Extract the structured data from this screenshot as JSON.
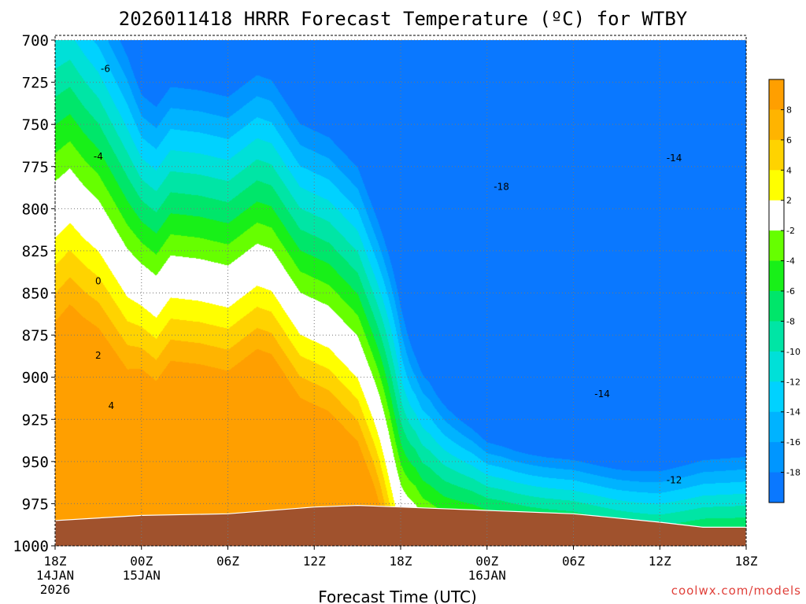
{
  "chart_data": {
    "type": "contour",
    "title": "2026011418 HRRR Forecast Temperature (ºC) for WTBY",
    "xlabel": "Forecast Time (UTC)",
    "ylabel": "",
    "credit": "coolwx.com/models",
    "y_axis": {
      "scale": "pressure (hPa), inverted",
      "ylim": [
        1000,
        700
      ],
      "ticks": [
        "700",
        "725",
        "750",
        "775",
        "800",
        "825",
        "850",
        "875",
        "900",
        "925",
        "950",
        "975",
        "1000"
      ]
    },
    "x_axis": {
      "xlim": [
        "2026-01-14T18Z",
        "2026-01-16T18Z"
      ],
      "ticks": [
        {
          "hour": 0,
          "label": "18Z",
          "sub1": "14JAN",
          "sub2": "2026"
        },
        {
          "hour": 6,
          "label": "00Z",
          "sub1": "15JAN",
          "sub2": ""
        },
        {
          "hour": 12,
          "label": "06Z",
          "sub1": "",
          "sub2": ""
        },
        {
          "hour": 18,
          "label": "12Z",
          "sub1": "",
          "sub2": ""
        },
        {
          "hour": 24,
          "label": "18Z",
          "sub1": "",
          "sub2": ""
        },
        {
          "hour": 30,
          "label": "00Z",
          "sub1": "16JAN",
          "sub2": ""
        },
        {
          "hour": 36,
          "label": "06Z",
          "sub1": "",
          "sub2": ""
        },
        {
          "hour": 42,
          "label": "12Z",
          "sub1": "",
          "sub2": ""
        },
        {
          "hour": 48,
          "label": "18Z",
          "sub1": "",
          "sub2": ""
        }
      ]
    },
    "grid": true,
    "colorbar": {
      "placement": "right",
      "labels": [
        "8",
        "6",
        "4",
        "2",
        "-2",
        "-4",
        "-6",
        "-8",
        "-10",
        "-12",
        "-14",
        "-16",
        "-18"
      ],
      "bands": [
        {
          "range": [
            8,
            10
          ],
          "color": "#ff9f00"
        },
        {
          "range": [
            6,
            8
          ],
          "color": "#ffb400"
        },
        {
          "range": [
            4,
            6
          ],
          "color": "#ffd300"
        },
        {
          "range": [
            2,
            4
          ],
          "color": "#ffff00"
        },
        {
          "range": [
            -2,
            2
          ],
          "color": "#ffffff"
        },
        {
          "range": [
            -4,
            -2
          ],
          "color": "#66ff00"
        },
        {
          "range": [
            -6,
            -4
          ],
          "color": "#18f018"
        },
        {
          "range": [
            -8,
            -6
          ],
          "color": "#00e66a"
        },
        {
          "range": [
            -10,
            -8
          ],
          "color": "#00e5a5"
        },
        {
          "range": [
            -12,
            -10
          ],
          "color": "#00e0d8"
        },
        {
          "range": [
            -14,
            -12
          ],
          "color": "#00d2ff"
        },
        {
          "range": [
            -16,
            -14
          ],
          "color": "#00b3ff"
        },
        {
          "range": [
            -18,
            -16
          ],
          "color": "#0096ff"
        },
        {
          "range": [
            -20,
            -18
          ],
          "color": "#0a78ff"
        }
      ]
    },
    "contour_labels": [
      {
        "text": "-6",
        "hour": 3.5,
        "p": 717
      },
      {
        "text": "-4",
        "hour": 3.0,
        "p": 769
      },
      {
        "text": "0",
        "hour": 3.0,
        "p": 843
      },
      {
        "text": "2",
        "hour": 3.0,
        "p": 887
      },
      {
        "text": "4",
        "hour": 3.9,
        "p": 917
      },
      {
        "text": "-18",
        "hour": 31.0,
        "p": 787
      },
      {
        "text": "-14",
        "hour": 43.0,
        "p": 770
      },
      {
        "text": "-14",
        "hour": 38.0,
        "p": 910
      },
      {
        "text": "-12",
        "hour": 43.0,
        "p": 961
      }
    ],
    "terrain": {
      "color": "#a0522d",
      "surface_pressure": [
        {
          "hour": 0,
          "p": 985
        },
        {
          "hour": 6,
          "p": 982
        },
        {
          "hour": 12,
          "p": 981
        },
        {
          "hour": 18,
          "p": 977
        },
        {
          "hour": 21,
          "p": 976
        },
        {
          "hour": 24,
          "p": 977
        },
        {
          "hour": 30,
          "p": 979
        },
        {
          "hour": 36,
          "p": 981
        },
        {
          "hour": 42,
          "p": 986
        },
        {
          "hour": 45,
          "p": 989
        },
        {
          "hour": 48,
          "p": 989
        }
      ]
    }
  }
}
